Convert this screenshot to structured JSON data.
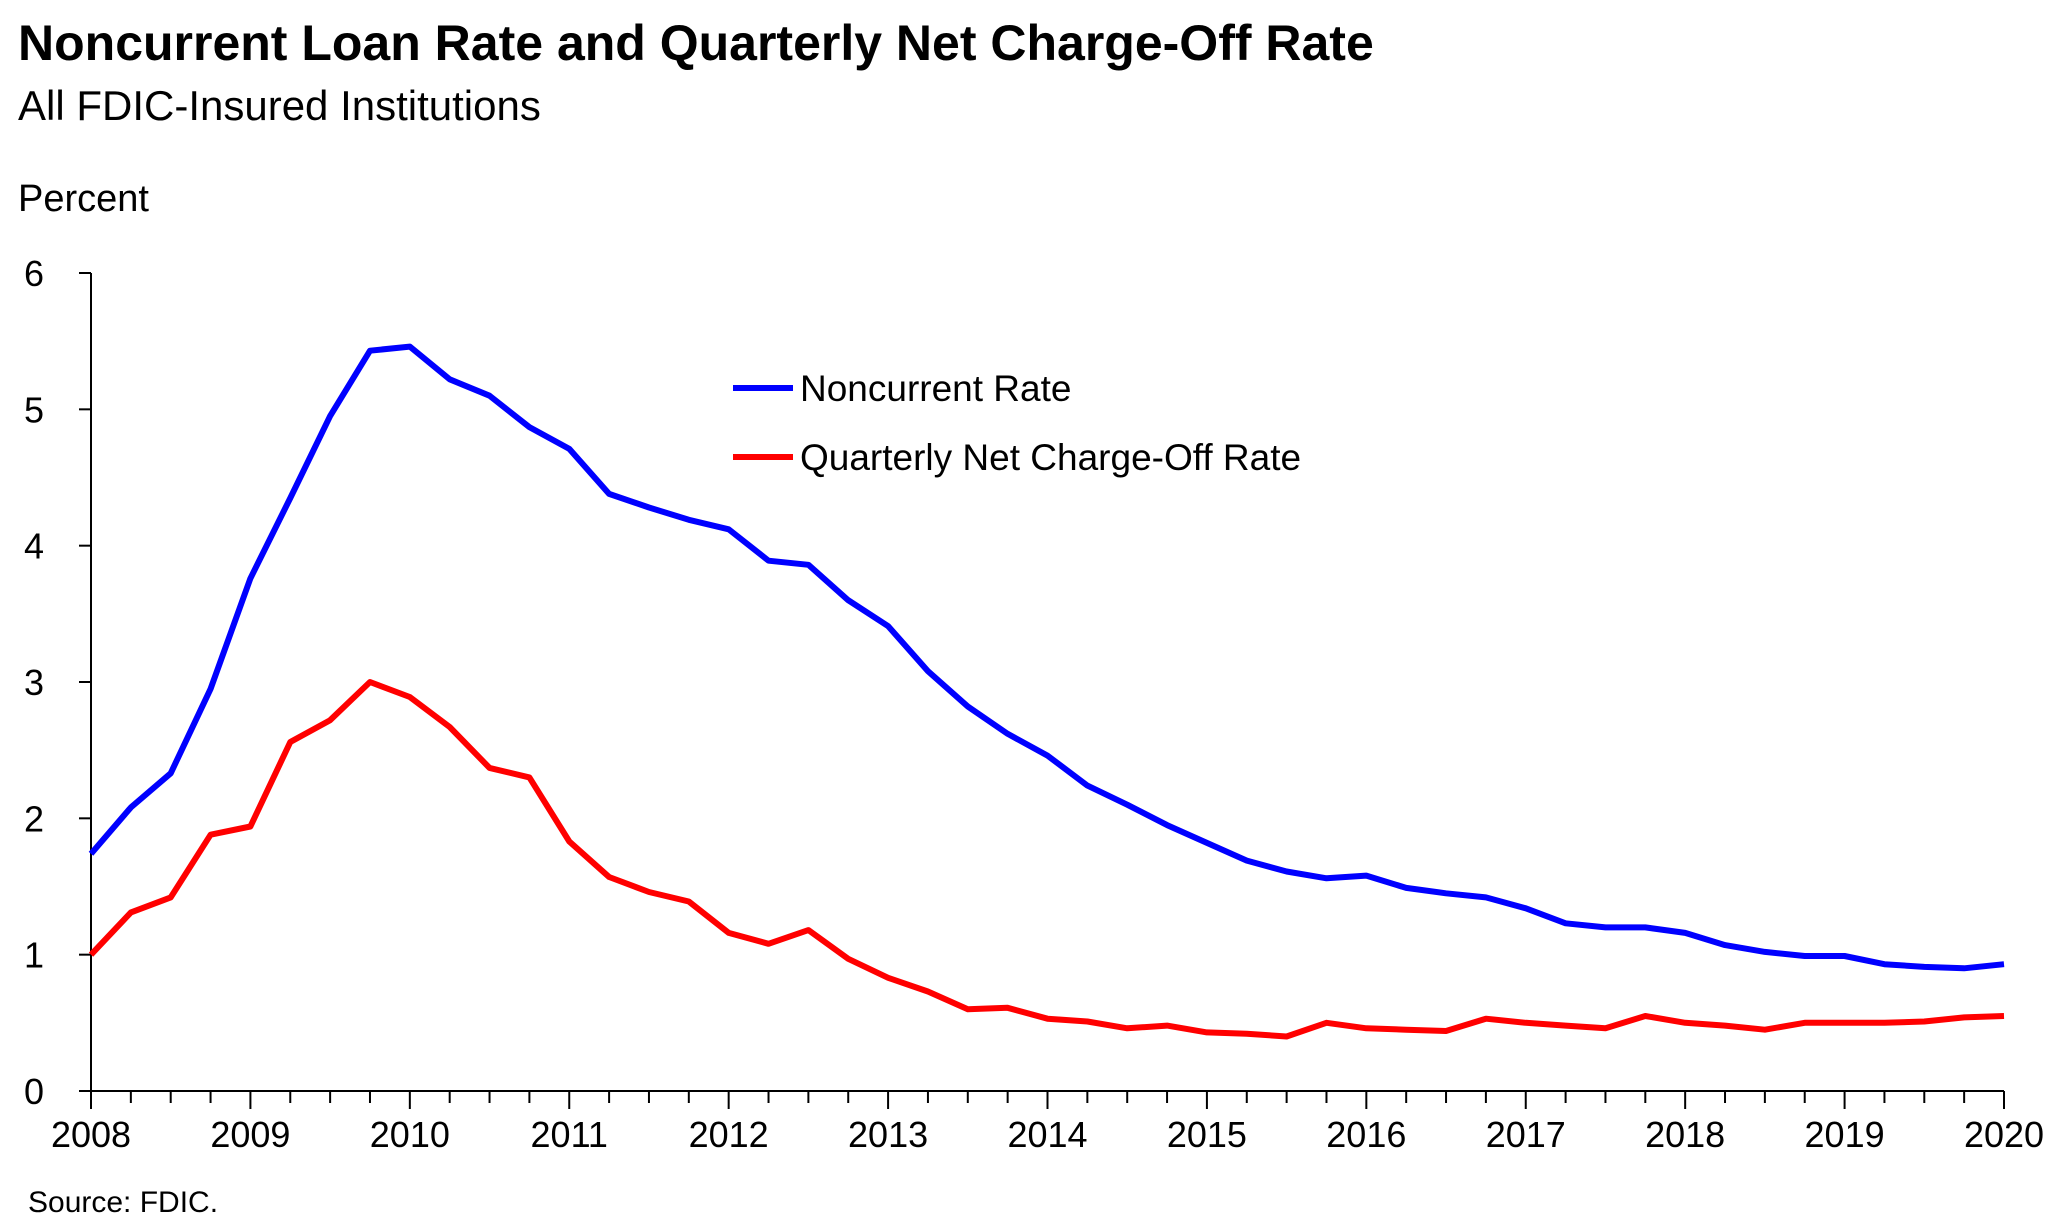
{
  "header": {
    "title": "Noncurrent Loan Rate and Quarterly Net Charge-Off Rate",
    "subtitle": "All FDIC-Insured Institutions"
  },
  "footer": {
    "source": "Source:  FDIC."
  },
  "colors": {
    "noncurrent": "#0000FF",
    "chargeoff": "#FF0000",
    "axis": "#000000"
  },
  "chart_data": {
    "type": "line",
    "title": "Noncurrent Loan Rate and Quarterly Net Charge-Off Rate",
    "subtitle": "All FDIC-Insured Institutions",
    "ylabel": "Percent",
    "xlabel": "",
    "ylim": [
      0,
      6
    ],
    "yticks": [
      0,
      1,
      2,
      3,
      4,
      5,
      6
    ],
    "xlim": [
      2008,
      2020
    ],
    "xticks": [
      "2008",
      "2009",
      "2010",
      "2011",
      "2012",
      "2013",
      "2014",
      "2015",
      "2016",
      "2017",
      "2018",
      "2019",
      "2020"
    ],
    "grid": false,
    "legend_position": "top-center",
    "x": [
      "2008Q1",
      "2008Q2",
      "2008Q3",
      "2008Q4",
      "2009Q1",
      "2009Q2",
      "2009Q3",
      "2009Q4",
      "2010Q1",
      "2010Q2",
      "2010Q3",
      "2010Q4",
      "2011Q1",
      "2011Q2",
      "2011Q3",
      "2011Q4",
      "2012Q1",
      "2012Q2",
      "2012Q3",
      "2012Q4",
      "2013Q1",
      "2013Q2",
      "2013Q3",
      "2013Q4",
      "2014Q1",
      "2014Q2",
      "2014Q3",
      "2014Q4",
      "2015Q1",
      "2015Q2",
      "2015Q3",
      "2015Q4",
      "2016Q1",
      "2016Q2",
      "2016Q3",
      "2016Q4",
      "2017Q1",
      "2017Q2",
      "2017Q3",
      "2017Q4",
      "2018Q1",
      "2018Q2",
      "2018Q3",
      "2018Q4",
      "2019Q1",
      "2019Q2",
      "2019Q3",
      "2019Q4",
      "2020Q1"
    ],
    "series": [
      {
        "name": "Noncurrent Rate",
        "values": [
          1.74,
          2.08,
          2.33,
          2.95,
          3.76,
          4.35,
          4.95,
          5.43,
          5.46,
          5.22,
          5.1,
          4.87,
          4.71,
          4.38,
          4.28,
          4.19,
          4.12,
          3.89,
          3.86,
          3.6,
          3.41,
          3.08,
          2.82,
          2.62,
          2.46,
          2.24,
          2.1,
          1.95,
          1.82,
          1.69,
          1.61,
          1.56,
          1.58,
          1.49,
          1.45,
          1.42,
          1.34,
          1.23,
          1.2,
          1.2,
          1.16,
          1.07,
          1.02,
          0.99,
          0.99,
          0.93,
          0.91,
          0.9,
          0.93
        ]
      },
      {
        "name": "Quarterly Net Charge-Off Rate",
        "values": [
          1.0,
          1.31,
          1.42,
          1.88,
          1.94,
          2.56,
          2.72,
          3.0,
          2.89,
          2.67,
          2.37,
          2.3,
          1.83,
          1.57,
          1.46,
          1.39,
          1.16,
          1.08,
          1.18,
          0.97,
          0.83,
          0.73,
          0.6,
          0.61,
          0.53,
          0.51,
          0.46,
          0.48,
          0.43,
          0.42,
          0.4,
          0.5,
          0.46,
          0.45,
          0.44,
          0.53,
          0.5,
          0.48,
          0.46,
          0.55,
          0.5,
          0.48,
          0.45,
          0.5,
          0.5,
          0.5,
          0.51,
          0.54,
          0.55
        ]
      }
    ]
  }
}
